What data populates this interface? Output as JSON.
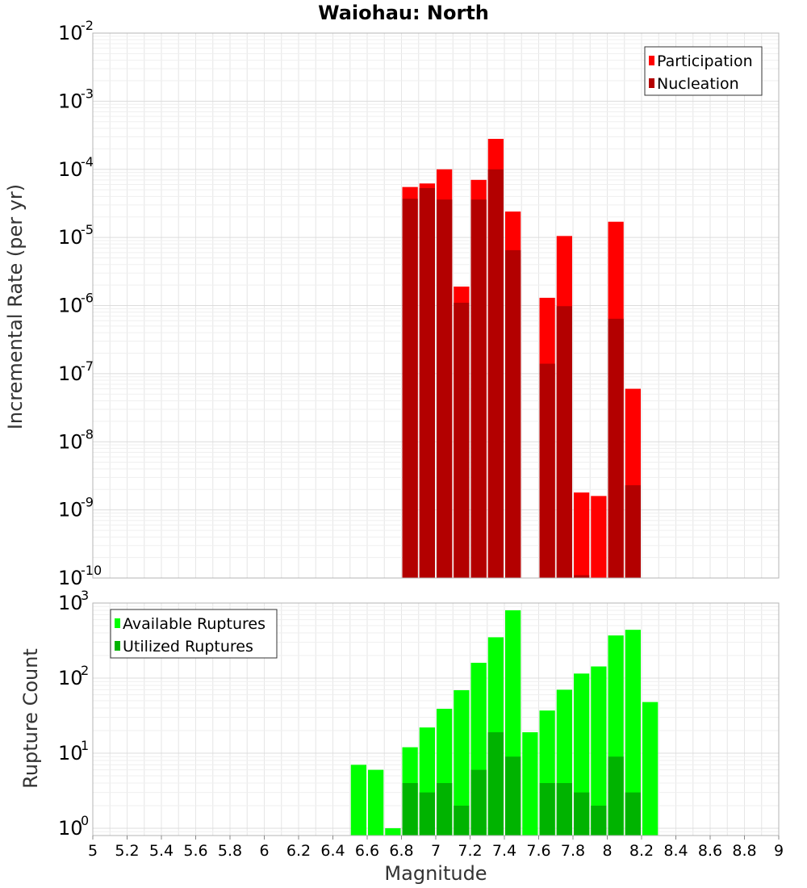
{
  "title": "Waiohau: North",
  "colors": {
    "participation": "#ff0000",
    "nucleation": "#b30000",
    "available": "#00ff00",
    "utilized": "#00b300",
    "grid": "#e6e6e6",
    "frame": "#b4b4b4"
  },
  "chart_data": [
    {
      "type": "bar",
      "title": "Waiohau: North",
      "ylabel": "Incremental Rate (per yr)",
      "xlabel": "",
      "yscale": "log",
      "ylim": [
        1e-10,
        0.01
      ],
      "xlim": [
        5,
        9
      ],
      "grid": true,
      "legend_position": "top-right",
      "bin_width": 0.1,
      "x": [
        6.85,
        6.95,
        7.05,
        7.15,
        7.25,
        7.35,
        7.45,
        7.65,
        7.75,
        7.85,
        7.95,
        8.05,
        8.15
      ],
      "series": [
        {
          "name": "Participation",
          "values": [
            5.5e-05,
            6.2e-05,
            0.0001,
            1.9e-06,
            7e-05,
            0.00028,
            2.4e-05,
            1.3e-06,
            1.05e-05,
            1.8e-09,
            1.6e-09,
            1.7e-05,
            6e-08
          ]
        },
        {
          "name": "Nucleation",
          "values": [
            3.7e-05,
            5.3e-05,
            3.6e-05,
            1.1e-06,
            3.6e-05,
            0.0001,
            6.5e-06,
            1.4e-07,
            9.8e-07,
            1.1e-10,
            null,
            6.4e-07,
            2.3e-09
          ]
        }
      ]
    },
    {
      "type": "bar",
      "ylabel": "Rupture Count",
      "xlabel": "Magnitude",
      "yscale": "log",
      "ylim": [
        0.8,
        1000
      ],
      "xlim": [
        5,
        9
      ],
      "grid": true,
      "legend_position": "top-left",
      "bin_width": 0.1,
      "x": [
        6.55,
        6.65,
        6.75,
        6.85,
        6.95,
        7.05,
        7.15,
        7.25,
        7.35,
        7.45,
        7.55,
        7.65,
        7.75,
        7.85,
        7.95,
        8.05,
        8.15,
        8.25
      ],
      "series": [
        {
          "name": "Available Ruptures",
          "values": [
            7,
            6,
            1,
            12,
            22,
            39,
            69,
            160,
            350,
            800,
            19,
            37,
            70,
            115,
            143,
            370,
            440,
            48
          ]
        },
        {
          "name": "Utilized Ruptures",
          "values": [
            null,
            null,
            null,
            4,
            3,
            4,
            2,
            6,
            19,
            9,
            null,
            4,
            4,
            3,
            2,
            9,
            3,
            null
          ]
        }
      ],
      "xticks": [
        "5",
        "5.2",
        "5.4",
        "5.6",
        "5.8",
        "6",
        "6.2",
        "6.4",
        "6.6",
        "6.8",
        "7",
        "7.2",
        "7.4",
        "7.6",
        "7.8",
        "8",
        "8.2",
        "8.4",
        "8.6",
        "8.8",
        "9"
      ]
    }
  ]
}
